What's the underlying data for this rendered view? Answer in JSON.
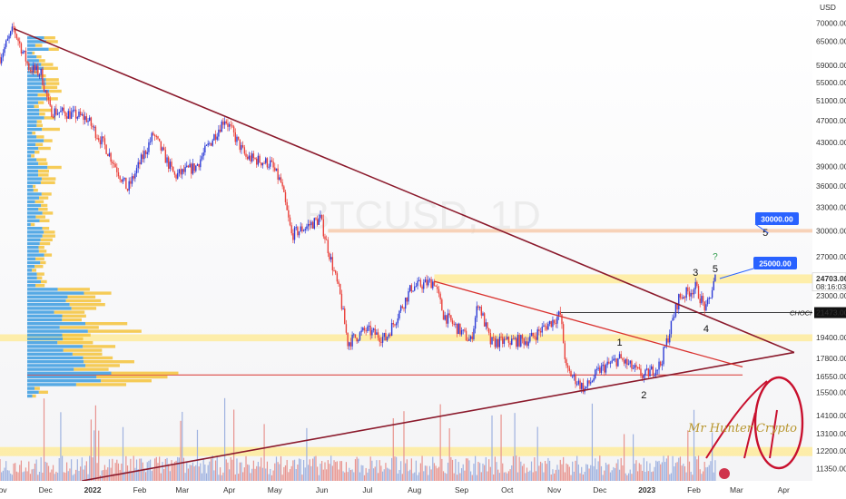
{
  "chart_data": {
    "type": "candlestick",
    "symbol_watermark": "BTCUSD, 1D",
    "currency": "USD",
    "y_scale": "log",
    "ylim": [
      10800,
      77000
    ],
    "price_ticks": [
      "70000.00",
      "65000.00",
      "59000.00",
      "55000.00",
      "51000.00",
      "47000.00",
      "43000.00",
      "39000.00",
      "36000.00",
      "33000.00",
      "30000.00",
      "27000.00",
      "23000.00",
      "19400.00",
      "17800.00",
      "16550.00",
      "15500.00",
      "14100.00",
      "13100.00",
      "12200.00",
      "11350.00"
    ],
    "x_ticks": [
      "Nov",
      "Dec",
      "2022",
      "Feb",
      "Mar",
      "Apr",
      "May",
      "Jun",
      "Jul",
      "Aug",
      "Sep",
      "Oct",
      "Nov",
      "Dec",
      "2023",
      "Feb",
      "Mar",
      "Apr"
    ],
    "x_range": [
      "2021-11-01",
      "2023-04-20"
    ],
    "price_path": [
      [
        "2021-11-01",
        61000
      ],
      [
        "2021-11-10",
        68500
      ],
      [
        "2021-11-20",
        58500
      ],
      [
        "2021-11-28",
        57000
      ],
      [
        "2021-12-04",
        49000
      ],
      [
        "2021-12-15",
        48500
      ],
      [
        "2021-12-28",
        47500
      ],
      [
        "2022-01-10",
        42000
      ],
      [
        "2022-01-24",
        35500
      ],
      [
        "2022-02-10",
        44500
      ],
      [
        "2022-02-24",
        37500
      ],
      [
        "2022-03-10",
        39000
      ],
      [
        "2022-03-29",
        47500
      ],
      [
        "2022-04-12",
        40500
      ],
      [
        "2022-04-28",
        39500
      ],
      [
        "2022-05-05",
        36500
      ],
      [
        "2022-05-12",
        29500
      ],
      [
        "2022-05-31",
        31500
      ],
      [
        "2022-06-13",
        23000
      ],
      [
        "2022-06-18",
        19000
      ],
      [
        "2022-06-30",
        20000
      ],
      [
        "2022-07-13",
        19300
      ],
      [
        "2022-07-30",
        23800
      ],
      [
        "2022-08-14",
        24400
      ],
      [
        "2022-08-20",
        21300
      ],
      [
        "2022-09-07",
        19100
      ],
      [
        "2022-09-12",
        22400
      ],
      [
        "2022-09-20",
        19000
      ],
      [
        "2022-10-15",
        19200
      ],
      [
        "2022-11-05",
        21300
      ],
      [
        "2022-11-09",
        17000
      ],
      [
        "2022-11-21",
        15700
      ],
      [
        "2022-12-01",
        17000
      ],
      [
        "2022-12-14",
        17800
      ],
      [
        "2022-12-30",
        16550
      ],
      [
        "2023-01-10",
        17400
      ],
      [
        "2023-01-22",
        22800
      ],
      [
        "2023-02-02",
        23800
      ],
      [
        "2023-02-09",
        21700
      ],
      [
        "2023-02-15",
        24700
      ]
    ],
    "last_price": "24703.00",
    "countdown": "08:16:03",
    "levels": [
      {
        "label": "30000.00",
        "price": 30000
      },
      {
        "label": "25000.00",
        "price": 25000
      },
      {
        "label": "CHOCH",
        "value": "21473.00",
        "price": 21473
      }
    ],
    "zones": [
      {
        "low": 24200,
        "high": 25100
      },
      {
        "low": 19100,
        "high": 19650
      },
      {
        "low": 11950,
        "high": 12400
      }
    ],
    "wave_labels": [
      "1",
      "2",
      "3",
      "4",
      "5",
      "5"
    ],
    "question_marks": [
      "?",
      "?"
    ],
    "signature": "Mr Hunter Crypto",
    "colors": {
      "up_candle": "#2c3bd6",
      "down_candle": "#e9403a",
      "trendline": "#8b1a2c",
      "red_line": "#d9322f",
      "zone": "#ffe98f",
      "level_30k": "#f7c9a8",
      "label_box": "#2962ff",
      "volume_up": "#9fb2e0",
      "volume_down": "#e8948f",
      "profile_blue": "#3a9be0",
      "profile_yellow": "#f5c33b"
    }
  }
}
